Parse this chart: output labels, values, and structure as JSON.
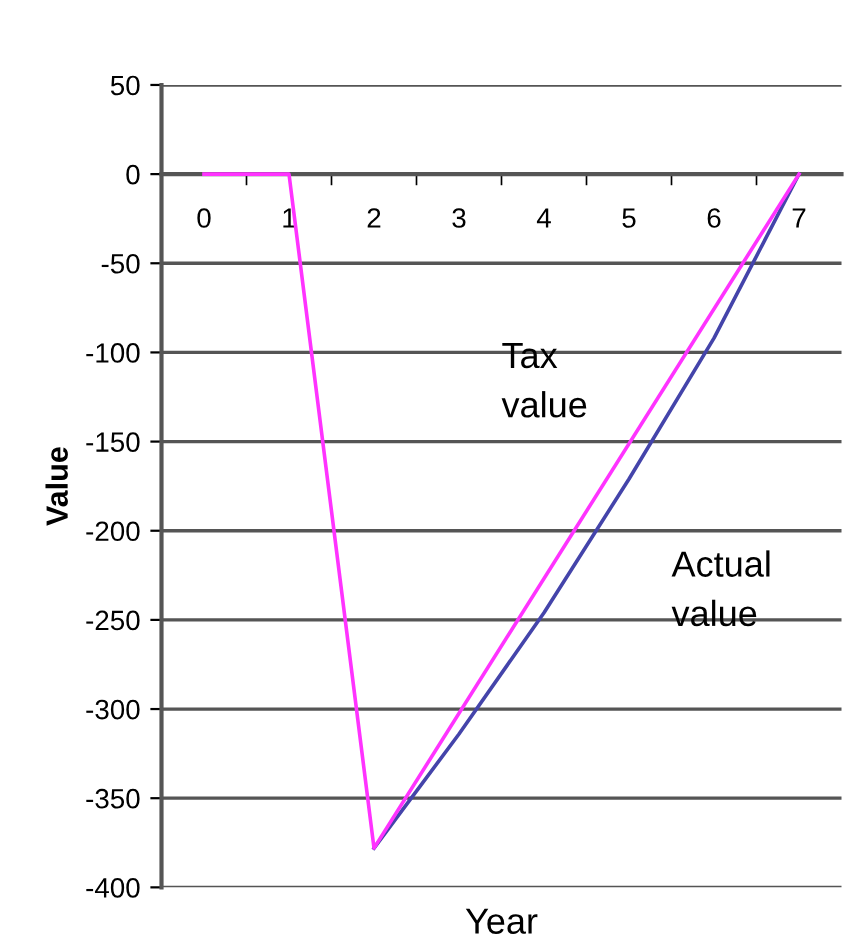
{
  "chart_data": {
    "type": "line",
    "xlabel": "Year",
    "ylabel": "Value",
    "categories": [
      "0",
      "1",
      "2",
      "3",
      "4",
      "5",
      "6",
      "7"
    ],
    "series": [
      {
        "name": "Tax value",
        "color": "#ff33ff",
        "values": [
          0,
          0,
          -378,
          null,
          null,
          null,
          null,
          0
        ]
      },
      {
        "name": "Actual value",
        "color": "#4444aa",
        "values": [
          null,
          null,
          -378,
          -314,
          -246,
          -171,
          -92,
          0
        ]
      }
    ],
    "ylim": [
      -400,
      50
    ],
    "yticks": [
      -400,
      -350,
      -300,
      -250,
      -200,
      -150,
      -100,
      -50,
      0,
      50
    ],
    "grid": "y",
    "legend": false,
    "marker": "none",
    "line_style": "solid"
  }
}
